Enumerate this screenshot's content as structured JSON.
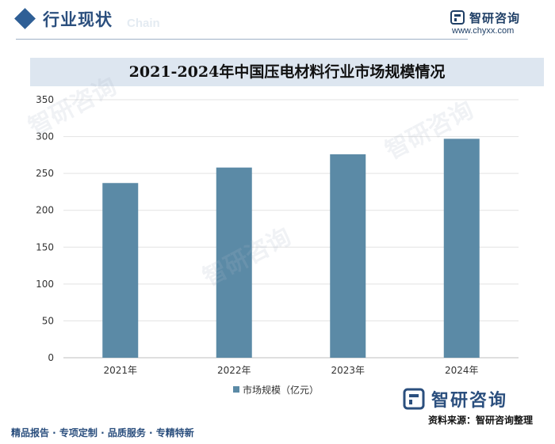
{
  "header": {
    "section_title": "行业现状",
    "section_sub": "Chain"
  },
  "brand": {
    "name": "智研咨询",
    "url": "www.chyxx.com",
    "color": "#1f3f66"
  },
  "watermark": "智研咨询",
  "chart_data": {
    "type": "bar",
    "title": "2021-2024年中国压电材料行业市场规模情况",
    "categories": [
      "2021年",
      "2022年",
      "2023年",
      "2024年"
    ],
    "series": [
      {
        "name": "市场规模（亿元）",
        "values": [
          237,
          258,
          276,
          297
        ],
        "color": "#5b8aa6"
      }
    ],
    "ylim": [
      0,
      350
    ],
    "yticks": [
      0,
      50,
      100,
      150,
      200,
      250,
      300,
      350
    ],
    "grid": true,
    "legend": "bottom-center"
  },
  "footer": {
    "tagline": "精品报告 · 专项定制 · 品质服务 · 专精特新",
    "brand_name": "智研咨询",
    "source": "资料来源：智研咨询整理"
  }
}
